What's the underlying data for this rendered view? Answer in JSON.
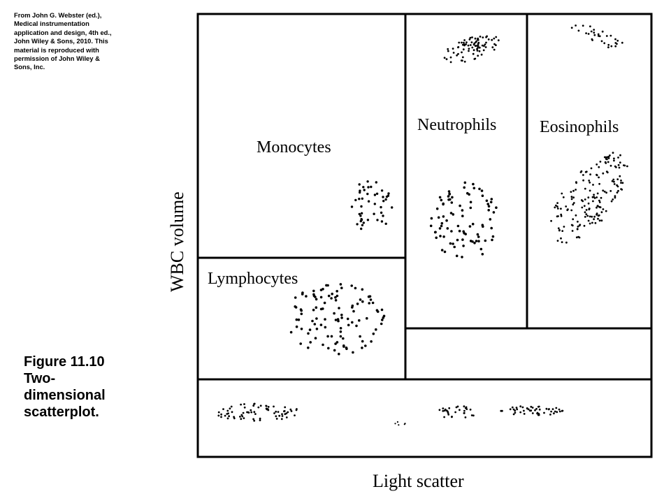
{
  "credit": "From John G. Webster (ed.), Medical instrumentation application and design, 4th ed., John Wiley & Sons, 2010. This material is reproduced with permission of John Wiley & Sons, Inc.",
  "caption": {
    "lines": [
      "Figure 11.10",
      "Two-",
      "dimensional",
      "scatterplot."
    ]
  },
  "diagram": {
    "regions": {
      "monocytes": "Monocytes",
      "neutrophils": "Neutrophils",
      "eosinophils": "Eosinophils",
      "lymphocytes": "Lymphocytes"
    },
    "x_axis_label": "Light scatter",
    "y_axis_label": "WBC volume"
  },
  "colors": {
    "ink": "#000000",
    "background": "#ffffff"
  }
}
